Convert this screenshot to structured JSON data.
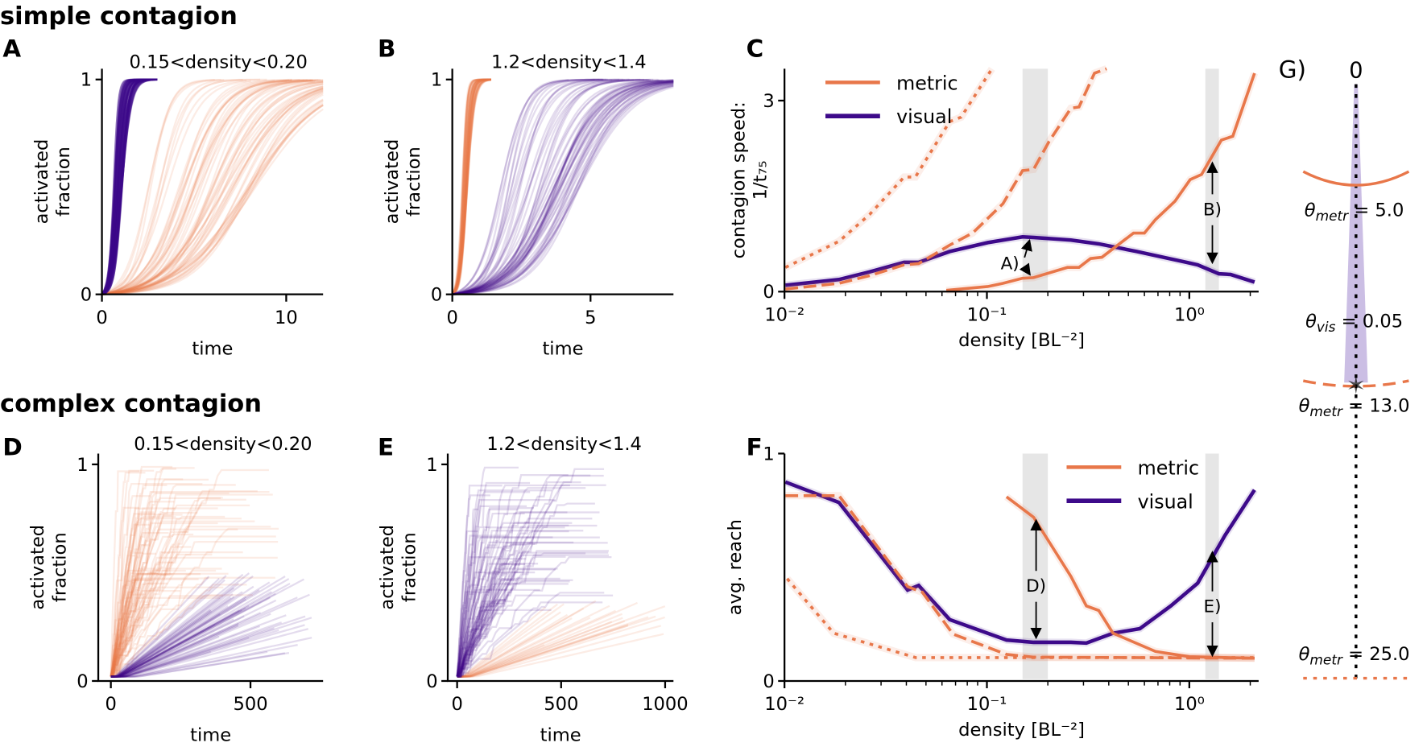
{
  "colors": {
    "metric": "#e8774a",
    "visual": "#3d0a8a",
    "band": "#e6e6e6",
    "cone": "#b9a8db"
  },
  "headers": {
    "simple": "simple contagion",
    "complex": "complex contagion"
  },
  "chart_data": [
    {
      "id": "A",
      "type": "line",
      "label": "A",
      "title": "0.15<density<0.20",
      "xlabel": "time",
      "ylabel": [
        "activated",
        "fraction"
      ],
      "xlim": [
        0,
        12
      ],
      "ylim": [
        0,
        1
      ],
      "xticks": [
        0,
        10
      ],
      "yticks": [
        0,
        1
      ],
      "ensembles": [
        {
          "model": "metric",
          "runs": 60,
          "t50_range": [
            2.5,
            8.5
          ],
          "final_fraction": 1,
          "t_end": 12
        },
        {
          "model": "visual",
          "runs": 60,
          "t50_range": [
            0.6,
            1.1
          ],
          "final_fraction": 1,
          "t_end": 3
        }
      ]
    },
    {
      "id": "B",
      "type": "line",
      "label": "B",
      "title": "1.2<density<1.4",
      "xlabel": "time",
      "ylabel": [
        "activated",
        "fraction"
      ],
      "xlim": [
        0,
        8
      ],
      "ylim": [
        0,
        1
      ],
      "xticks": [
        0,
        5
      ],
      "yticks": [
        0,
        1
      ],
      "ensembles": [
        {
          "model": "metric",
          "runs": 60,
          "t50_range": [
            0.35,
            0.55
          ],
          "final_fraction": 1,
          "t_end": 1.4
        },
        {
          "model": "visual",
          "runs": 60,
          "t50_range": [
            1.6,
            4.6
          ],
          "final_fraction": 1,
          "t_end": 8
        }
      ]
    },
    {
      "id": "C",
      "type": "line",
      "label": "C",
      "xlabel": "density [BL⁻²]",
      "ylabel": [
        "contagion speed:",
        "1/t₇₅"
      ],
      "xscale": "log",
      "xlim": [
        0.01,
        2.2
      ],
      "ylim": [
        0,
        3.5
      ],
      "yticks": [
        0,
        3
      ],
      "xticks": [
        {
          "v": 0.01,
          "label": "10⁻²"
        },
        {
          "v": 0.1,
          "label": "10⁻¹"
        },
        {
          "v": 1,
          "label": "10⁰"
        }
      ],
      "bands": [
        [
          0.15,
          0.2
        ],
        [
          1.2,
          1.4
        ]
      ],
      "legend": {
        "placement": "top-left",
        "entries": [
          {
            "label": "metric",
            "model": "metric"
          },
          {
            "label": "visual",
            "model": "visual"
          }
        ]
      },
      "annotations": [
        {
          "text": "A)",
          "x": 0.13,
          "y": 0.45
        },
        {
          "text": "B)",
          "x": 1.3,
          "y": 1.3
        }
      ],
      "series": [
        {
          "model": "visual",
          "style": "solid",
          "x": [
            0.0101,
            0.0186,
            0.0263,
            0.039,
            0.046,
            0.0655,
            0.101,
            0.15,
            0.17,
            0.26,
            0.357,
            0.55,
            0.97,
            1.1,
            1.4,
            1.6,
            2.1
          ],
          "y": [
            0.1,
            0.19,
            0.31,
            0.46,
            0.46,
            0.63,
            0.77,
            0.86,
            0.85,
            0.81,
            0.75,
            0.63,
            0.46,
            0.42,
            0.28,
            0.27,
            0.15
          ]
        },
        {
          "model": "metric",
          "theta": 5.0,
          "style": "solid",
          "x": [
            0.063,
            0.101,
            0.12,
            0.15,
            0.17,
            0.25,
            0.285,
            0.325,
            0.37,
            0.53,
            0.6,
            0.68,
            0.85,
            1.01,
            1.15,
            1.44,
            1.64,
            2.1
          ],
          "y": [
            0.02,
            0.08,
            0.13,
            0.21,
            0.22,
            0.38,
            0.38,
            0.52,
            0.54,
            0.92,
            0.92,
            1.13,
            1.42,
            1.76,
            1.84,
            2.38,
            2.44,
            3.43
          ]
        },
        {
          "model": "metric",
          "theta": 13.0,
          "style": "dashed",
          "x": [
            0.0101,
            0.0186,
            0.0263,
            0.039,
            0.046,
            0.0655,
            0.085,
            0.12,
            0.15,
            0.17,
            0.203,
            0.26,
            0.285,
            0.34,
            0.39
          ],
          "y": [
            0.04,
            0.13,
            0.25,
            0.42,
            0.44,
            0.73,
            0.92,
            1.38,
            1.9,
            1.92,
            2.36,
            2.88,
            2.9,
            3.43,
            3.5
          ]
        },
        {
          "model": "metric",
          "theta": 25.0,
          "style": "dotted",
          "x": [
            0.0101,
            0.0186,
            0.0263,
            0.039,
            0.0443,
            0.0655,
            0.0746,
            0.106
          ],
          "y": [
            0.38,
            0.79,
            1.21,
            1.8,
            1.8,
            2.67,
            2.74,
            3.5
          ]
        }
      ]
    },
    {
      "id": "D",
      "type": "line",
      "label": "D",
      "title": "0.15<density<0.20",
      "xlabel": "time",
      "ylabel": [
        "activated",
        "fraction"
      ],
      "xlim": [
        -45,
        760
      ],
      "ylim": [
        0,
        1
      ],
      "xticks": [
        0,
        500
      ],
      "yticks": [
        0,
        1
      ],
      "ensembles": [
        {
          "model": "metric",
          "runs": 70,
          "final_fraction_range": [
            0.35,
            1.0
          ],
          "t_end_range": [
            100,
            620
          ]
        },
        {
          "model": "visual",
          "runs": 60,
          "final_fraction_range": [
            0.12,
            0.5
          ],
          "t_end_range": [
            350,
            720
          ]
        }
      ]
    },
    {
      "id": "E",
      "type": "line",
      "label": "E",
      "title": "1.2<density<1.4",
      "xlabel": "time",
      "ylabel": [
        "activated",
        "fraction"
      ],
      "xlim": [
        -45,
        1040
      ],
      "ylim": [
        0,
        1
      ],
      "xticks": [
        0,
        500,
        1000
      ],
      "yticks": [
        0,
        1
      ],
      "ensembles": [
        {
          "model": "metric",
          "runs": 25,
          "final_fraction_range": [
            0.15,
            0.37
          ],
          "t_end_range": [
            350,
            1000
          ]
        },
        {
          "model": "visual",
          "runs": 70,
          "final_fraction_range": [
            0.3,
            1.0
          ],
          "t_end_range": [
            100,
            750
          ]
        }
      ]
    },
    {
      "id": "F",
      "type": "line",
      "label": "F",
      "xlabel": "density [BL⁻²]",
      "ylabel": [
        "avg. reach"
      ],
      "xscale": "log",
      "xlim": [
        0.01,
        2.2
      ],
      "ylim": [
        0,
        1
      ],
      "yticks": [
        0,
        1
      ],
      "xticks": [
        {
          "v": 0.01,
          "label": "10⁻²"
        },
        {
          "v": 0.1,
          "label": "10⁻¹"
        },
        {
          "v": 1,
          "label": "10⁰"
        }
      ],
      "bands": [
        [
          0.15,
          0.2
        ],
        [
          1.2,
          1.4
        ]
      ],
      "legend": {
        "placement": "top-right",
        "entries": [
          {
            "label": "metric",
            "model": "metric"
          },
          {
            "label": "visual",
            "model": "visual"
          }
        ]
      },
      "annotations": [
        {
          "text": "D)",
          "x": 0.175,
          "y": 0.42
        },
        {
          "text": "E)",
          "x": 1.3,
          "y": 0.33
        }
      ],
      "series": [
        {
          "model": "visual",
          "style": "solid",
          "x": [
            0.0101,
            0.0186,
            0.0406,
            0.046,
            0.0655,
            0.125,
            0.17,
            0.26,
            0.31,
            0.42,
            0.57,
            0.81,
            1.1,
            1.5,
            2.1
          ],
          "y": [
            0.875,
            0.785,
            0.4,
            0.42,
            0.27,
            0.18,
            0.17,
            0.17,
            0.167,
            0.21,
            0.23,
            0.33,
            0.43,
            0.64,
            0.84
          ]
        },
        {
          "model": "metric",
          "theta": 5.0,
          "style": "solid",
          "x": [
            0.125,
            0.17,
            0.26,
            0.31,
            0.357,
            0.42,
            0.68,
            1.0,
            2.1
          ],
          "y": [
            0.81,
            0.72,
            0.46,
            0.33,
            0.31,
            0.21,
            0.13,
            0.107,
            0.1
          ]
        },
        {
          "model": "metric",
          "theta": 13.0,
          "style": "dashed",
          "x": [
            0.0101,
            0.0186,
            0.0406,
            0.048,
            0.068,
            0.125,
            0.17,
            2.1
          ],
          "y": [
            0.815,
            0.815,
            0.415,
            0.39,
            0.206,
            0.117,
            0.105,
            0.1
          ]
        },
        {
          "model": "metric",
          "theta": 25.0,
          "style": "dotted",
          "x": [
            0.0103,
            0.0175,
            0.0445,
            2.1
          ],
          "y": [
            0.45,
            0.21,
            0.103,
            0.103
          ]
        }
      ]
    }
  ],
  "schematic": {
    "label": "G)",
    "origin": "0",
    "labels": [
      {
        "text": "θmetr = 5.0",
        "sym": "θ",
        "sub": "metr",
        "val": " = 5.0",
        "model": "metric",
        "style": "solid"
      },
      {
        "text": "θvis = 0.05",
        "sym": "θ",
        "sub": "vis",
        "val": " = 0.05",
        "model": "visual"
      },
      {
        "text": "θmetr = 13.0",
        "sym": "θ",
        "sub": "metr",
        "val": " = 13.0",
        "model": "metric",
        "style": "dashed"
      },
      {
        "text": "θmetr = 25.0",
        "sym": "θ",
        "sub": "metr",
        "val": " = 25.0",
        "model": "metric",
        "style": "dotted"
      }
    ]
  }
}
